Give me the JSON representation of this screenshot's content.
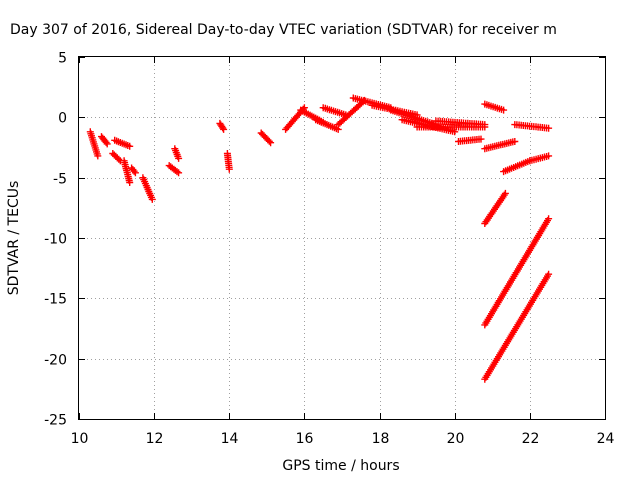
{
  "chart_data": {
    "type": "scatter",
    "title": "Day 307 of 2016, Sidereal Day-to-day VTEC variation (SDTVAR) for receiver m",
    "xlabel": "GPS time / hours",
    "ylabel": "SDTVAR / TECUs",
    "xlim": [
      10,
      24
    ],
    "ylim": [
      -25,
      5
    ],
    "xticks": [
      "10",
      "12",
      "14",
      "16",
      "18",
      "20",
      "22",
      "24"
    ],
    "yticks": [
      "5",
      "0",
      "-5",
      "-10",
      "-15",
      "-20",
      "-25"
    ],
    "grid": true,
    "marker": "plus",
    "color": "#ff0000",
    "segments": [
      {
        "x0": 10.3,
        "x1": 10.5,
        "y0": -1.2,
        "y1": -3.2
      },
      {
        "x0": 10.6,
        "x1": 10.75,
        "y0": -1.6,
        "y1": -2.2
      },
      {
        "x0": 10.9,
        "x1": 11.1,
        "y0": -3.0,
        "y1": -3.6
      },
      {
        "x0": 10.95,
        "x1": 11.35,
        "y0": -1.9,
        "y1": -2.4
      },
      {
        "x0": 11.2,
        "x1": 11.35,
        "y0": -3.6,
        "y1": -5.4
      },
      {
        "x0": 11.4,
        "x1": 11.5,
        "y0": -4.2,
        "y1": -4.6
      },
      {
        "x0": 11.7,
        "x1": 11.95,
        "y0": -5.0,
        "y1": -6.8
      },
      {
        "x0": 12.4,
        "x1": 12.65,
        "y0": -4.0,
        "y1": -4.6
      },
      {
        "x0": 12.55,
        "x1": 12.65,
        "y0": -2.6,
        "y1": -3.4
      },
      {
        "x0": 13.75,
        "x1": 13.85,
        "y0": -0.5,
        "y1": -1.0
      },
      {
        "x0": 13.95,
        "x1": 14.0,
        "y0": -3.0,
        "y1": -4.3
      },
      {
        "x0": 14.85,
        "x1": 15.1,
        "y0": -1.3,
        "y1": -2.1
      },
      {
        "x0": 15.5,
        "x1": 16.0,
        "y0": -1.0,
        "y1": 0.8
      },
      {
        "x0": 15.9,
        "x1": 16.5,
        "y0": 0.6,
        "y1": -0.4
      },
      {
        "x0": 16.3,
        "x1": 16.9,
        "y0": -0.2,
        "y1": -1.0
      },
      {
        "x0": 16.5,
        "x1": 17.1,
        "y0": 0.8,
        "y1": 0.2
      },
      {
        "x0": 16.9,
        "x1": 17.6,
        "y0": -0.6,
        "y1": 1.4
      },
      {
        "x0": 17.3,
        "x1": 18.3,
        "y0": 1.6,
        "y1": 0.8
      },
      {
        "x0": 17.8,
        "x1": 19.0,
        "y0": 1.0,
        "y1": 0.2
      },
      {
        "x0": 18.3,
        "x1": 19.5,
        "y0": 0.6,
        "y1": -0.6
      },
      {
        "x0": 18.6,
        "x1": 20.0,
        "y0": -0.2,
        "y1": -1.2
      },
      {
        "x0": 19.0,
        "x1": 20.8,
        "y0": -0.8,
        "y1": -0.8
      },
      {
        "x0": 19.5,
        "x1": 20.8,
        "y0": -0.3,
        "y1": -0.6
      },
      {
        "x0": 20.1,
        "x1": 20.7,
        "y0": -2.0,
        "y1": -1.8
      },
      {
        "x0": 20.8,
        "x1": 21.3,
        "y0": 1.1,
        "y1": 0.6
      },
      {
        "x0": 20.8,
        "x1": 21.6,
        "y0": -2.6,
        "y1": -2.0
      },
      {
        "x0": 21.6,
        "x1": 22.5,
        "y0": -0.6,
        "y1": -0.9
      },
      {
        "x0": 21.3,
        "x1": 22.0,
        "y0": -4.5,
        "y1": -3.6
      },
      {
        "x0": 22.0,
        "x1": 22.5,
        "y0": -3.6,
        "y1": -3.2
      },
      {
        "x0": 20.8,
        "x1": 21.35,
        "y0": -8.8,
        "y1": -6.3
      },
      {
        "x0": 20.8,
        "x1": 22.5,
        "y0": -17.2,
        "y1": -8.4
      },
      {
        "x0": 20.8,
        "x1": 22.5,
        "y0": -21.7,
        "y1": -13.0
      }
    ]
  }
}
